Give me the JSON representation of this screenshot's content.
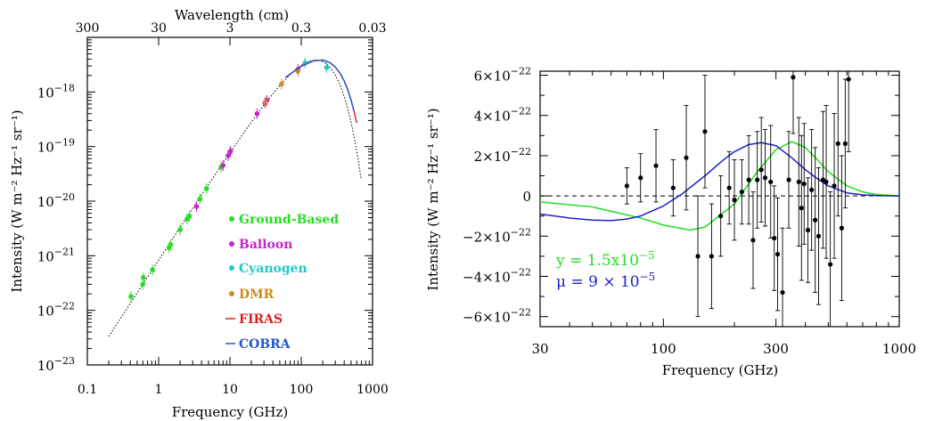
{
  "chart_data": [
    {
      "type": "scatter",
      "xlabel": "Frequency (GHz)",
      "ylabel": "Intensity (W m⁻² Hz⁻¹ sr⁻¹)",
      "top_xlabel": "Wavelength (cm)",
      "xscale": "log",
      "yscale": "log",
      "xlim": [
        0.1,
        1000
      ],
      "ylim": [
        1e-23,
        1e-17
      ],
      "x_tick_labels": [
        "0.1",
        "1",
        "10",
        "100",
        "1000"
      ],
      "y_tick_labels": [
        {
          "base": "10",
          "exp": "−23"
        },
        {
          "base": "10",
          "exp": "−22"
        },
        {
          "base": "10",
          "exp": "−21"
        },
        {
          "base": "10",
          "exp": "−20"
        },
        {
          "base": "10",
          "exp": "−19"
        },
        {
          "base": "10",
          "exp": "−18"
        }
      ],
      "top_tick_labels": [
        "300",
        "30",
        "3",
        "0.3",
        "0.03"
      ],
      "legend_placement": "lower-right",
      "series": [
        {
          "name": "Ground-Based",
          "color": "#22e022",
          "marker": "dot",
          "x": [
            0.41,
            0.6,
            0.61,
            0.82,
            1.4,
            1.47,
            2.0,
            2.5,
            2.7,
            3.8,
            4.7,
            7.5,
            10.0
          ],
          "y": [
            1.8e-22,
            3e-22,
            4e-22,
            5.5e-22,
            1.4e-21,
            1.6e-21,
            3e-21,
            4.7e-21,
            5.3e-21,
            1.1e-20,
            1.7e-20,
            4.2e-20,
            7.8e-20
          ]
        },
        {
          "name": "Balloon",
          "color": "#cc22cc",
          "marker": "dot",
          "x": [
            3.4,
            8.0,
            9.4,
            10.2,
            24.0,
            31.0,
            33.0,
            90.0
          ],
          "y": [
            8e-21,
            4.5e-20,
            6.8e-20,
            8.2e-20,
            4e-19,
            6.3e-19,
            7e-19,
            2.6e-18
          ]
        },
        {
          "name": "Cyanogen",
          "color": "#22c8c8",
          "marker": "dot",
          "x": [
            113.0,
            227.0
          ],
          "y": [
            3.4e-18,
            2.8e-18
          ]
        },
        {
          "name": "DMR",
          "color": "#d08a22",
          "marker": "dot",
          "x": [
            31.5,
            53.0,
            90.0
          ],
          "y": [
            6.5e-19,
            1.4e-18,
            2.4e-18
          ]
        },
        {
          "name": "FIRAS",
          "color": "#e02020",
          "marker": "line",
          "x": [
            60,
            100,
            150,
            200,
            250,
            300,
            350,
            400,
            450,
            500,
            550,
            600
          ],
          "y": [
            1.84e-18,
            2.97e-18,
            3.74e-18,
            3.84e-18,
            3.48e-18,
            2.87e-18,
            2.21e-18,
            1.6e-18,
            1.09e-18,
            7.1e-19,
            4.4e-19,
            2.7e-19
          ]
        },
        {
          "name": "COBRA",
          "color": "#2255cc",
          "marker": "line",
          "x": [
            60,
            100,
            150,
            200,
            250,
            300,
            350,
            400,
            450,
            500,
            550
          ],
          "y": [
            1.84e-18,
            2.97e-18,
            3.74e-18,
            3.84e-18,
            3.48e-18,
            2.87e-18,
            2.21e-18,
            1.6e-18,
            1.09e-18,
            7.1e-19,
            4.4e-19
          ]
        }
      ],
      "model_curve": {
        "style": "dotted",
        "color": "#000000",
        "note_visible": false
      }
    },
    {
      "type": "scatter",
      "xlabel": "Frequency (GHz)",
      "ylabel": "Intensity (W m⁻² Hz⁻¹ sr⁻¹)",
      "xscale": "log",
      "xlim": [
        30,
        1000
      ],
      "ylim": [
        -6.5e-22,
        6.2e-22
      ],
      "x_tick_labels": [
        "30",
        "100",
        "300",
        "1000"
      ],
      "y_tick_labels": [
        {
          "base": "6×10",
          "exp": "−22"
        },
        {
          "base": "4×10",
          "exp": "−22"
        },
        {
          "base": "2×10",
          "exp": "−22"
        },
        {
          "base": "0",
          "exp": ""
        },
        {
          "base": "−2×10",
          "exp": "−22"
        },
        {
          "base": "−4×10",
          "exp": "−22"
        },
        {
          "base": "−6×10",
          "exp": "−22"
        }
      ],
      "zero_line": "dashed",
      "annotations": [
        {
          "text": "y = 1.5x10",
          "exp": "−5",
          "color": "#22dd22"
        },
        {
          "text": "μ = 9 × 10",
          "exp": "−5",
          "color": "#1a22cc"
        }
      ],
      "points": {
        "color": "#000000",
        "x": [
          70,
          80,
          93,
          110,
          125,
          140,
          150,
          160,
          175,
          190,
          200,
          215,
          230,
          240,
          250,
          260,
          270,
          285,
          295,
          305,
          320,
          340,
          355,
          375,
          385,
          395,
          410,
          425,
          440,
          455,
          475,
          490,
          510,
          530,
          550,
          570,
          590,
          610
        ],
        "y": [
          5e-23,
          9e-23,
          1.5e-22,
          4e-23,
          1.9e-22,
          -3e-22,
          3.2e-22,
          -3e-22,
          -1e-22,
          4e-23,
          -2e-23,
          2e-23,
          8e-23,
          -2.2e-22,
          8e-23,
          1.3e-22,
          9e-23,
          7e-23,
          -2.1e-22,
          -2.9e-22,
          -4.8e-22,
          8e-23,
          5.9e-22,
          7e-23,
          -6e-23,
          6e-23,
          -1.7e-22,
          3e-23,
          -1.2e-22,
          -2e-22,
          8e-23,
          7e-23,
          -3.4e-22,
          5e-23,
          2.6e-22,
          -1.6e-22,
          2.6e-22,
          5.8e-22
        ],
        "err": [
          9e-23,
          1.2e-22,
          1.8e-22,
          1.4e-22,
          2.6e-22,
          3e-22,
          2.8e-22,
          2.6e-22,
          2e-22,
          1.8e-22,
          2e-22,
          1.6e-22,
          2.2e-22,
          2.4e-22,
          2.4e-22,
          2.6e-22,
          2.4e-22,
          2.8e-22,
          2.6e-22,
          2.8e-22,
          3.2e-22,
          2.4e-22,
          2.8e-22,
          3.2e-22,
          3.6e-22,
          3e-22,
          2.6e-22,
          3e-22,
          3.6e-22,
          3.4e-22,
          3.4e-22,
          3.8e-22,
          3.6e-22,
          3.6e-22,
          3.6e-22,
          3.6e-22,
          3.2e-22,
          3.6e-22
        ]
      },
      "series": [
        {
          "kind": "y-distortion",
          "color": "#22dd22",
          "x": [
            30,
            50,
            80,
            100,
            130,
            150,
            200,
            250,
            300,
            350,
            400,
            450,
            500,
            600,
            700,
            800,
            1000
          ],
          "y": [
            -3e-23,
            -5.5e-23,
            -1.1e-22,
            -1.45e-22,
            -1.7e-22,
            -1.55e-22,
            -4e-23,
            1.2e-22,
            2.3e-22,
            2.7e-22,
            2.4e-22,
            1.8e-22,
            1.2e-22,
            5e-23,
            2e-23,
            7e-24,
            0.0
          ]
        },
        {
          "kind": "mu-distortion",
          "color": "#1a22cc",
          "x": [
            30,
            40,
            50,
            60,
            70,
            80,
            100,
            120,
            150,
            180,
            200,
            230,
            260,
            300,
            350,
            400,
            450,
            500,
            600,
            700,
            800,
            1000
          ],
          "y": [
            -9e-23,
            -1.1e-22,
            -1.2e-22,
            -1.23e-22,
            -1.15e-22,
            -1e-22,
            -5e-23,
            1e-23,
            1e-22,
            1.8e-22,
            2.2e-22,
            2.55e-22,
            2.65e-22,
            2.5e-22,
            1.9e-22,
            1.3e-22,
            8.5e-23,
            5e-23,
            1.5e-23,
            5e-24,
            2e-24,
            0.0
          ]
        }
      ]
    }
  ]
}
